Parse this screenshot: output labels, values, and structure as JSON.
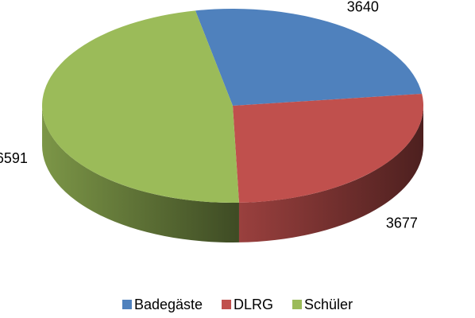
{
  "chart_data": {
    "type": "pie",
    "three_d": true,
    "categories": [
      "Badegäste",
      "DLRG",
      "Schüler"
    ],
    "values": [
      3640,
      3677,
      6591
    ],
    "colors": [
      "#4f81bd",
      "#c0504d",
      "#9bbb59"
    ]
  }
}
